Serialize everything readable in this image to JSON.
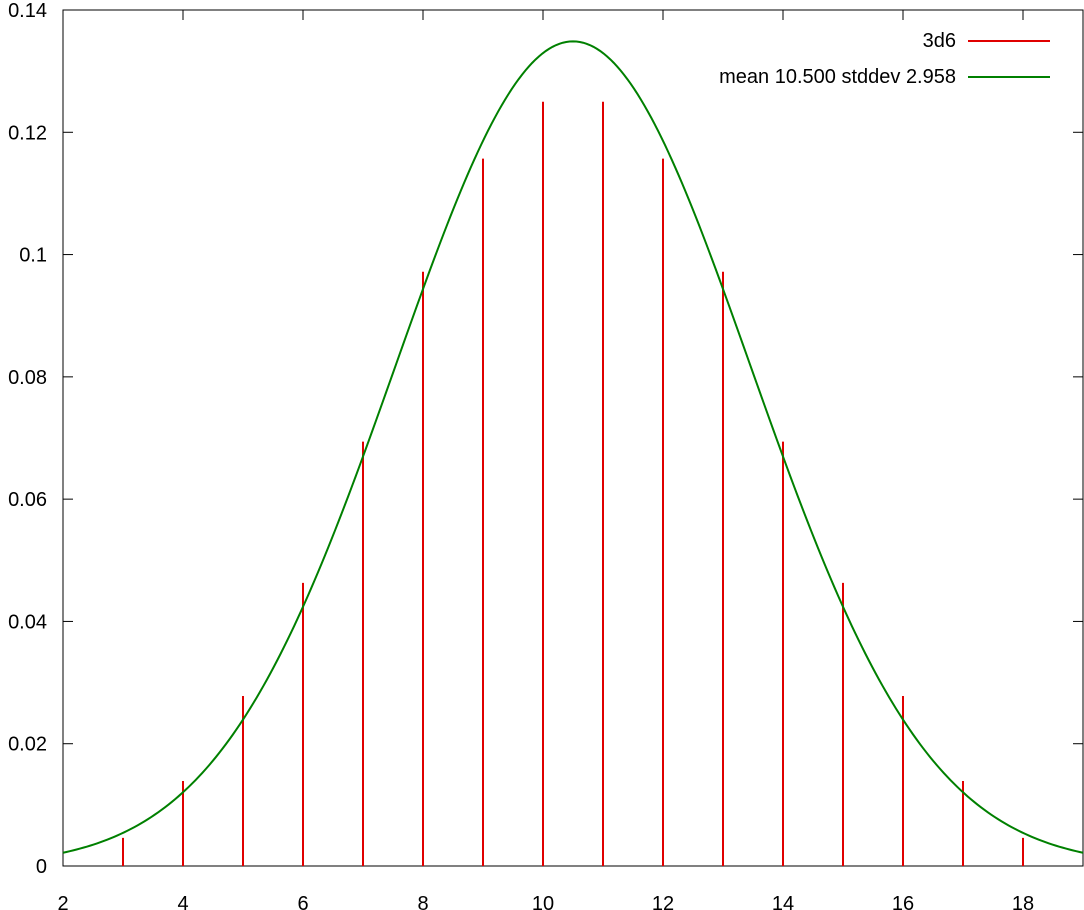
{
  "chart_data": {
    "type": "line",
    "title": "",
    "xlabel": "",
    "ylabel": "",
    "xlim": [
      2,
      19
    ],
    "ylim": [
      0,
      0.14
    ],
    "grid": false,
    "legend_position": "top-right",
    "x_ticks": [
      "2",
      "4",
      "6",
      "8",
      "10",
      "12",
      "14",
      "16",
      "18"
    ],
    "y_ticks": [
      "0",
      "0.02",
      "0.04",
      "0.06",
      "0.08",
      "0.1",
      "0.12",
      "0.14"
    ],
    "series": [
      {
        "name": "3d6",
        "style": "impulses",
        "color": "#e00000",
        "x": [
          3,
          4,
          5,
          6,
          7,
          8,
          9,
          10,
          11,
          12,
          13,
          14,
          15,
          16,
          17,
          18
        ],
        "values": [
          0.0046,
          0.0139,
          0.0278,
          0.0463,
          0.0694,
          0.0972,
          0.1157,
          0.125,
          0.125,
          0.1157,
          0.0972,
          0.0694,
          0.0463,
          0.0278,
          0.0139,
          0.0046
        ]
      },
      {
        "name": "mean 10.500 stddev 2.958",
        "style": "line",
        "color": "#008000",
        "mean": 10.5,
        "stddev": 2.958
      }
    ]
  }
}
